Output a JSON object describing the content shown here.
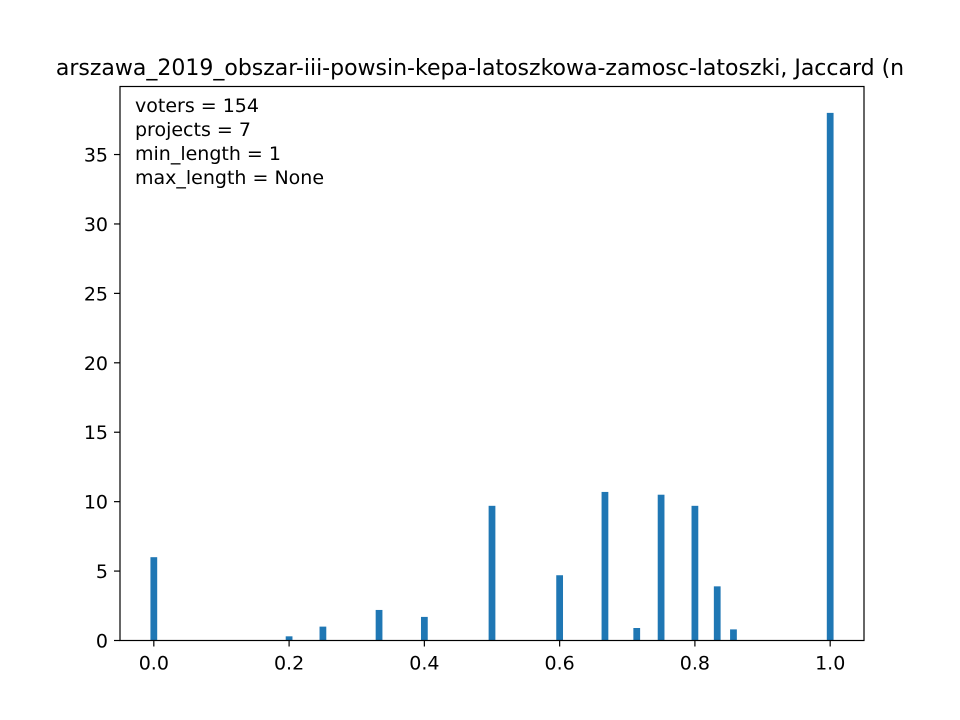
{
  "chart_data": {
    "type": "bar",
    "title": "arszawa_2019_obszar-iii-powsin-kepa-latoszkowa-zamosc-latoszki, Jaccard (n",
    "xlabel": "",
    "ylabel": "",
    "xlim": [
      -0.05,
      1.05
    ],
    "ylim": [
      0,
      39.9
    ],
    "bar_width": 0.01,
    "bar_color": "#1f77b4",
    "x_ticks": [
      {
        "value": 0.0,
        "label": "0.0"
      },
      {
        "value": 0.2,
        "label": "0.2"
      },
      {
        "value": 0.4,
        "label": "0.4"
      },
      {
        "value": 0.6,
        "label": "0.6"
      },
      {
        "value": 0.8,
        "label": "0.8"
      },
      {
        "value": 1.0,
        "label": "1.0"
      }
    ],
    "y_ticks": [
      {
        "value": 0,
        "label": "0"
      },
      {
        "value": 5,
        "label": "5"
      },
      {
        "value": 10,
        "label": "10"
      },
      {
        "value": 15,
        "label": "15"
      },
      {
        "value": 20,
        "label": "20"
      },
      {
        "value": 25,
        "label": "25"
      },
      {
        "value": 30,
        "label": "30"
      },
      {
        "value": 35,
        "label": "35"
      }
    ],
    "bars": [
      {
        "x": 0.0,
        "y": 6.0
      },
      {
        "x": 0.2,
        "y": 0.3
      },
      {
        "x": 0.25,
        "y": 1.0
      },
      {
        "x": 0.333,
        "y": 2.2
      },
      {
        "x": 0.4,
        "y": 1.7
      },
      {
        "x": 0.5,
        "y": 9.7
      },
      {
        "x": 0.6,
        "y": 4.7
      },
      {
        "x": 0.667,
        "y": 10.7
      },
      {
        "x": 0.714,
        "y": 0.9
      },
      {
        "x": 0.75,
        "y": 10.5
      },
      {
        "x": 0.8,
        "y": 9.7
      },
      {
        "x": 0.833,
        "y": 3.9
      },
      {
        "x": 0.857,
        "y": 0.8
      },
      {
        "x": 1.0,
        "y": 38.0
      }
    ],
    "annotations": [
      "voters = 154",
      "projects = 7",
      "min_length = 1",
      "max_length = None"
    ]
  }
}
